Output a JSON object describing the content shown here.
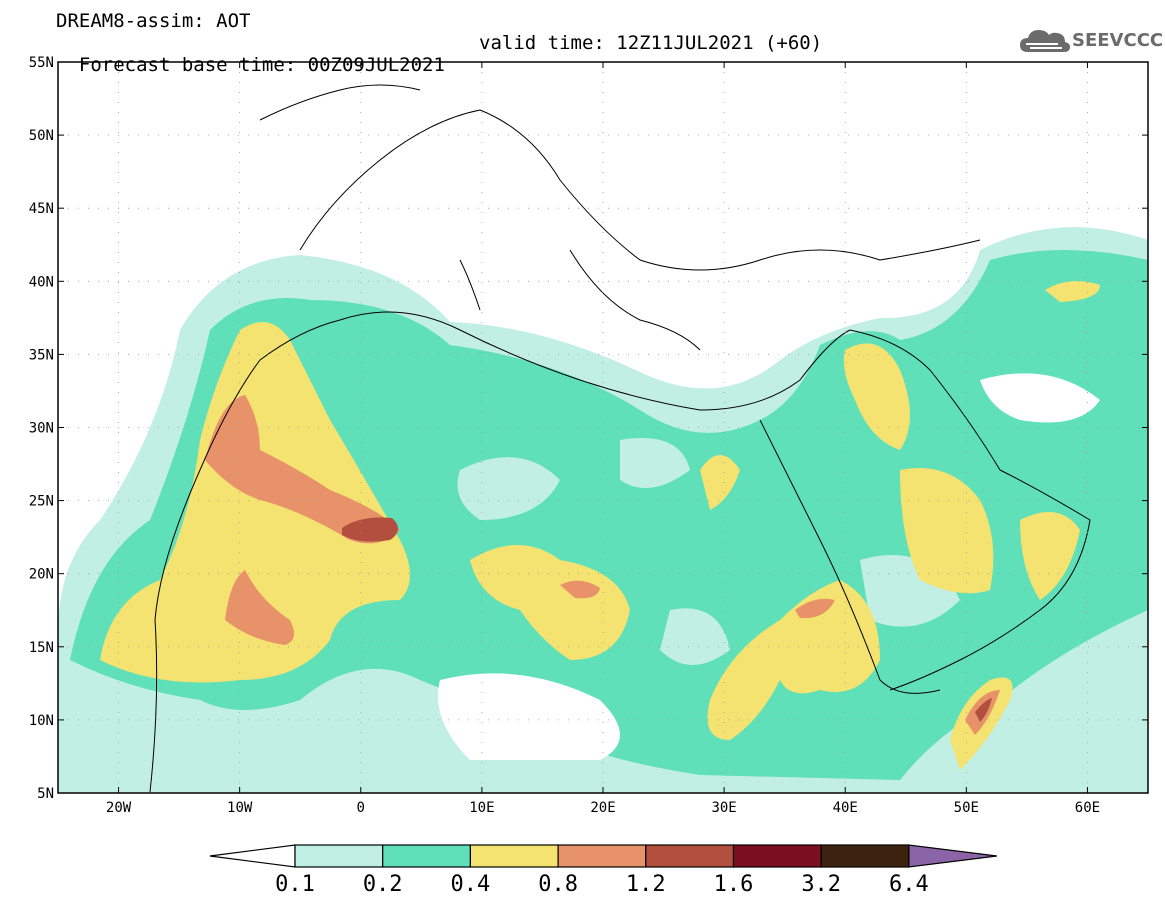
{
  "title": {
    "line1": "DREAM8-assim: AOT",
    "line2_left": "Forecast base time: 00Z09JUL2021",
    "line2_right": "valid time: 12Z11JUL2021 (+60)"
  },
  "logo": {
    "text": "SEEVCCC",
    "icon": "cloud-icon",
    "color": "#6b6b6b"
  },
  "map": {
    "lon_range": [
      -25,
      65
    ],
    "lat_range": [
      5,
      55
    ],
    "lon_ticks": [
      "20W",
      "10W",
      "0",
      "10E",
      "20E",
      "30E",
      "40E",
      "50E",
      "60E"
    ],
    "lat_ticks": [
      "5N",
      "10N",
      "15N",
      "20N",
      "25N",
      "30N",
      "35N",
      "40N",
      "45N",
      "50N",
      "55N"
    ],
    "gridlines": "dotted"
  },
  "colorbar": {
    "labels": [
      "0.1",
      "0.2",
      "0.4",
      "0.8",
      "1.2",
      "1.6",
      "3.2",
      "6.4"
    ],
    "colors": [
      "#c2efe4",
      "#5fe0b9",
      "#f4e271",
      "#e8926a",
      "#b24f3e",
      "#7b0f22",
      "#3e2210",
      "#8a64a6"
    ],
    "under_color": "#ffffff"
  }
}
